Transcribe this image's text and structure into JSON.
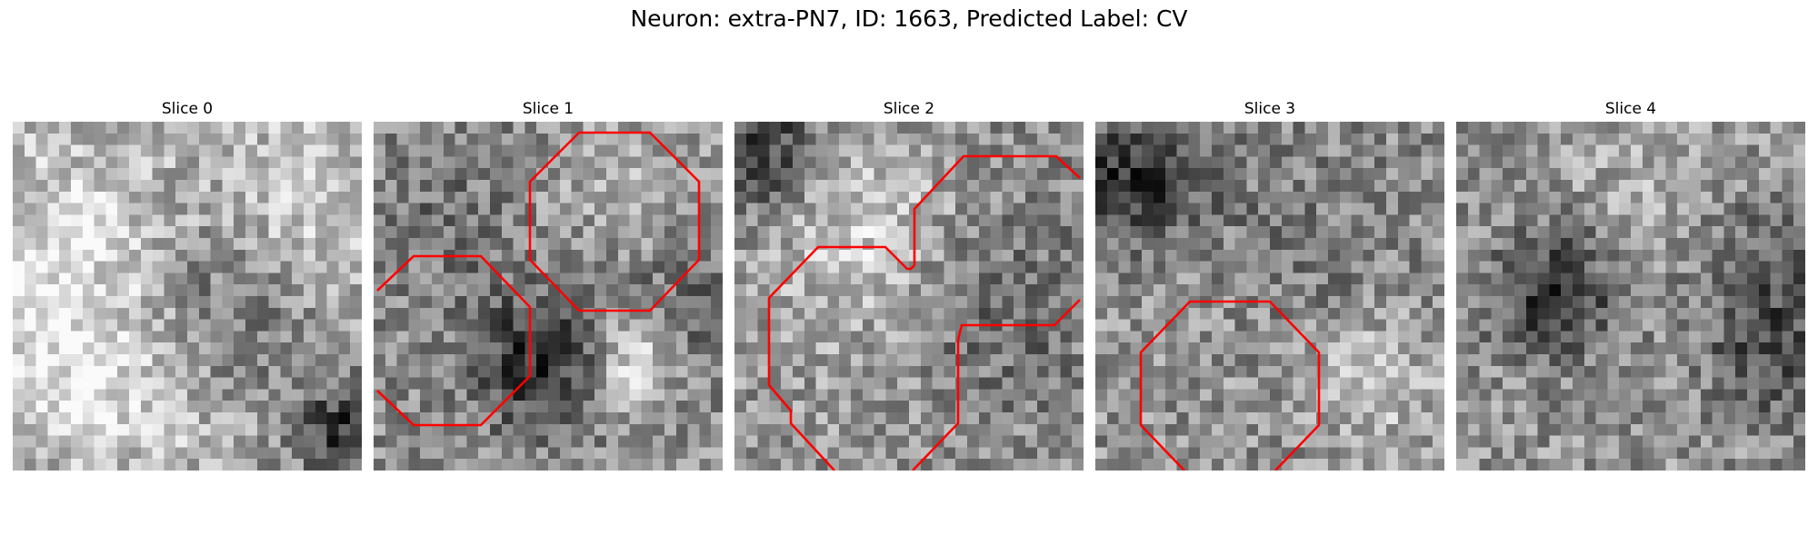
{
  "title": "Neuron: extra-PN7, ID: 1663, Predicted Label: CV",
  "contour_color": "#ff0000",
  "slices": [
    {
      "label": "Slice 0",
      "has_contour": false
    },
    {
      "label": "Slice 1",
      "has_contour": true
    },
    {
      "label": "Slice 2",
      "has_contour": true
    },
    {
      "label": "Slice 3",
      "has_contour": true
    },
    {
      "label": "Slice 4",
      "has_contour": false
    }
  ]
}
